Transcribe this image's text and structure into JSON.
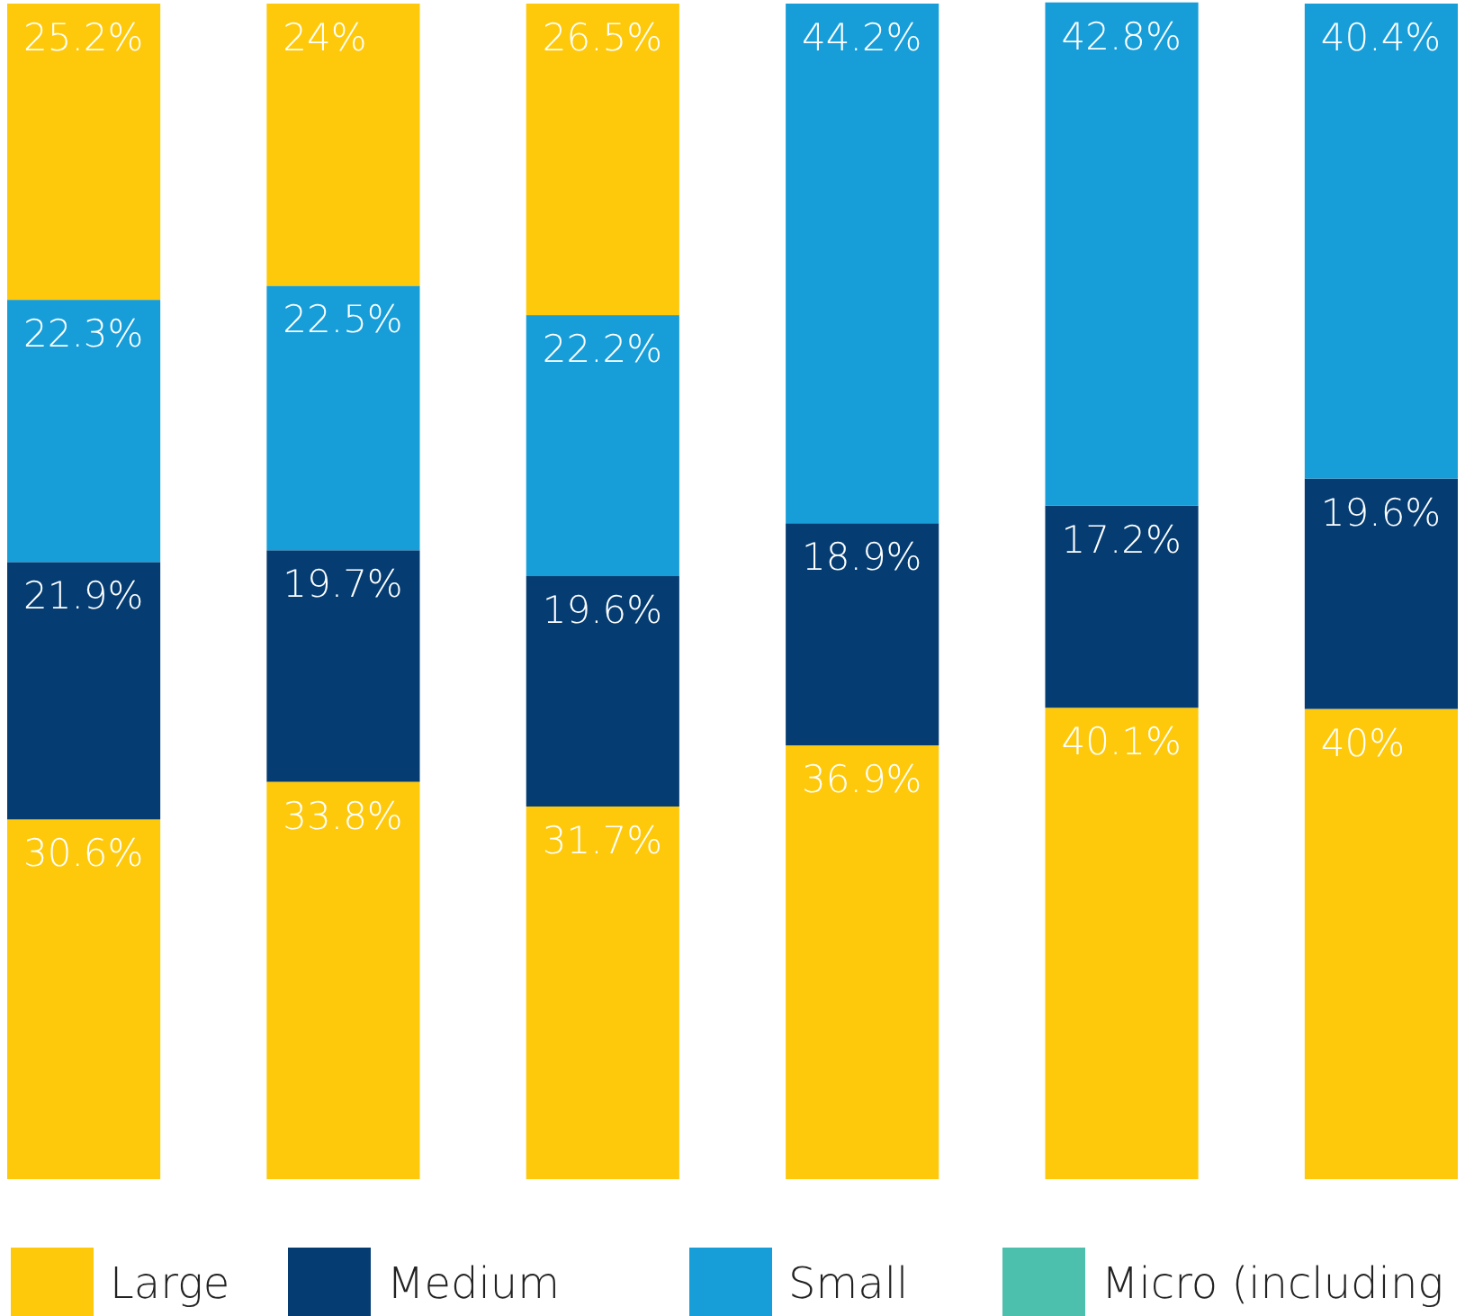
{
  "chart_data": {
    "type": "bar",
    "stacked": true,
    "categories": [
      null,
      null,
      null,
      null,
      null,
      null
    ],
    "ylim": [
      0,
      100
    ],
    "legend": "bottom",
    "series": [
      {
        "name": "Large",
        "color": "#fec90a",
        "values": [
          30.6,
          33.8,
          31.7,
          36.9,
          40.1,
          40
        ],
        "value_labels": [
          "30.6%",
          "33.8%",
          "31.7%",
          "36.9%",
          "40.1%",
          "40%"
        ]
      },
      {
        "name": "Medium",
        "color": "#053d73",
        "values": [
          21.9,
          19.7,
          19.6,
          18.9,
          17.2,
          19.6
        ],
        "value_labels": [
          "21.9%",
          "19.7%",
          "19.6%",
          "18.9%",
          "17.2%",
          "19.6%"
        ]
      },
      {
        "name": "Small",
        "color": "#179ed9",
        "values": [
          22.3,
          22.5,
          22.2,
          44.2,
          42.8,
          40.4
        ],
        "value_labels": [
          "22.3%",
          "22.5%",
          "22.2%",
          "44.2%",
          "42.8%",
          "40.4%"
        ]
      },
      {
        "color": "#fec90a",
        "values": [
          25.2,
          24,
          26.5,
          null,
          null,
          null
        ],
        "value_labels": [
          "25.2%",
          "24%",
          "26.5%",
          null,
          null,
          null
        ]
      },
      {
        "name": "Micro (including",
        "color": "#4cbfad",
        "values": [
          null,
          null,
          null,
          null,
          null,
          null
        ]
      }
    ]
  }
}
